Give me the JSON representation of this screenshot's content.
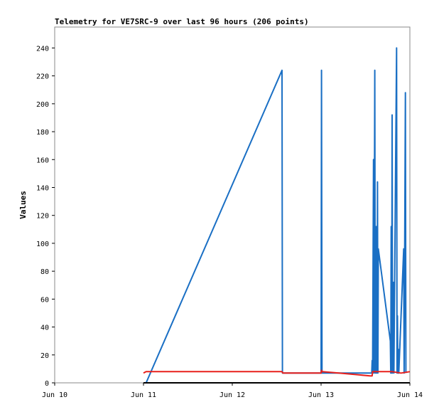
{
  "chart_data": {
    "type": "line",
    "title": "Telemetry for VE7SRC-9 over last 96 hours (206 points)",
    "xlabel": "",
    "ylabel": "Values",
    "x_unit": "days (June)",
    "xlim": [
      10.0,
      14.0
    ],
    "ylim": [
      0,
      255
    ],
    "x_ticks": [
      {
        "value": 10,
        "label": "Jun 10"
      },
      {
        "value": 11,
        "label": "Jun 11"
      },
      {
        "value": 12,
        "label": "Jun 12"
      },
      {
        "value": 13,
        "label": "Jun 13"
      },
      {
        "value": 14,
        "label": "Jun 14"
      }
    ],
    "y_ticks": [
      0,
      20,
      40,
      60,
      80,
      100,
      120,
      140,
      160,
      180,
      200,
      220,
      240
    ],
    "grid": false,
    "legend": "none",
    "series": [
      {
        "color": "#1a6fc4",
        "points": [
          [
            11.03,
            0
          ],
          [
            12.56,
            224
          ],
          [
            12.565,
            7
          ],
          [
            13.0,
            7
          ],
          [
            13.005,
            224
          ],
          [
            13.01,
            7
          ],
          [
            13.57,
            7
          ],
          [
            13.575,
            16
          ],
          [
            13.58,
            7
          ],
          [
            13.59,
            160
          ],
          [
            13.595,
            7
          ],
          [
            13.605,
            224
          ],
          [
            13.61,
            7
          ],
          [
            13.615,
            112
          ],
          [
            13.62,
            7
          ],
          [
            13.625,
            112
          ],
          [
            13.63,
            7
          ],
          [
            13.635,
            144
          ],
          [
            13.64,
            7
          ],
          [
            13.645,
            96
          ],
          [
            13.78,
            30
          ],
          [
            13.785,
            7
          ],
          [
            13.79,
            112
          ],
          [
            13.795,
            7
          ],
          [
            13.8,
            192
          ],
          [
            13.805,
            7
          ],
          [
            13.815,
            72
          ],
          [
            13.82,
            7
          ],
          [
            13.85,
            240
          ],
          [
            13.855,
            7
          ],
          [
            13.86,
            48
          ],
          [
            13.865,
            7
          ],
          [
            13.87,
            24
          ],
          [
            13.875,
            7
          ],
          [
            13.93,
            96
          ],
          [
            13.935,
            7
          ],
          [
            13.95,
            208
          ],
          [
            13.955,
            7
          ]
        ]
      },
      {
        "color": "#e8201c",
        "points": [
          [
            11.0,
            7
          ],
          [
            11.03,
            8
          ],
          [
            11.5,
            8
          ],
          [
            12.0,
            8
          ],
          [
            12.56,
            8
          ],
          [
            12.57,
            7
          ],
          [
            13.0,
            7
          ],
          [
            13.005,
            9
          ],
          [
            13.01,
            8
          ],
          [
            13.2,
            7
          ],
          [
            13.55,
            5
          ],
          [
            13.575,
            5
          ],
          [
            13.58,
            8
          ],
          [
            13.8,
            8
          ],
          [
            13.9,
            7
          ],
          [
            14.0,
            8
          ]
        ]
      },
      {
        "color": "#000000",
        "points": [
          [
            11.0,
            0
          ],
          [
            14.0,
            0
          ]
        ]
      }
    ]
  }
}
